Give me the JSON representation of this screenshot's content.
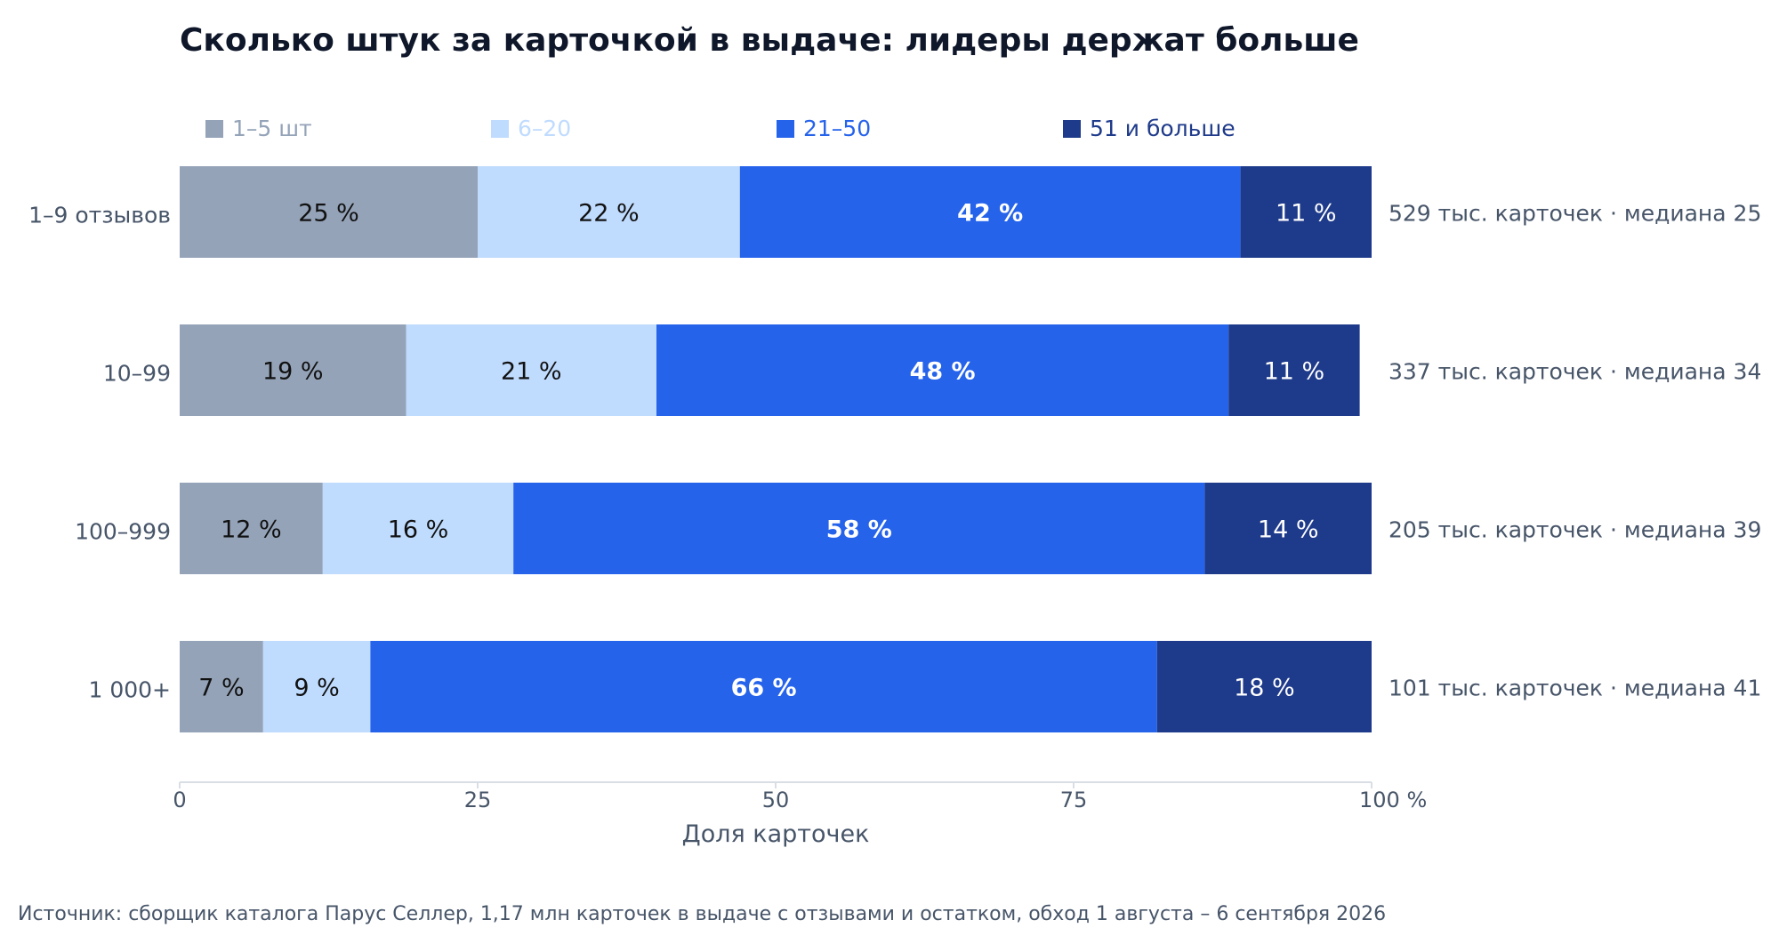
{
  "chart_data": {
    "type": "bar",
    "orientation": "horizontal",
    "stacked": true,
    "title": "Сколько штук за карточкой в выдаче: лидеры держат больше",
    "xlabel": "Доля карточек",
    "ylabel": "",
    "xlim": [
      0,
      100
    ],
    "x_ticks": [
      {
        "value": 0,
        "label": "0"
      },
      {
        "value": 25,
        "label": "25"
      },
      {
        "value": 50,
        "label": "50"
      },
      {
        "value": 75,
        "label": "75"
      },
      {
        "value": 100,
        "label": "100 %"
      }
    ],
    "grid": false,
    "legend_position": "top",
    "categories": [
      "1–9 отзывов",
      "10–99",
      "100–999",
      "1 000+"
    ],
    "series": [
      {
        "name": "1–5 шт",
        "color": "#94a3b8",
        "label_color": "#111111",
        "bold": false,
        "values": [
          25,
          19,
          12,
          7
        ]
      },
      {
        "name": "6–20",
        "color": "#bfdbfe",
        "label_color": "#111111",
        "bold": false,
        "values": [
          22,
          21,
          16,
          9
        ]
      },
      {
        "name": "21–50",
        "color": "#2563eb",
        "label_color": "#ffffff",
        "bold": true,
        "values": [
          42,
          48,
          58,
          66
        ]
      },
      {
        "name": "51 и больше",
        "color": "#1e3a8a",
        "label_color": "#ffffff",
        "bold": false,
        "values": [
          11,
          11,
          14,
          18
        ]
      }
    ],
    "value_labels": [
      [
        "25 %",
        "22 %",
        "42 %",
        "11 %"
      ],
      [
        "19 %",
        "21 %",
        "48 %",
        "11 %"
      ],
      [
        "12 %",
        "16 %",
        "58 %",
        "14 %"
      ],
      [
        "7 %",
        "9 %",
        "66 %",
        "18 %"
      ]
    ],
    "row_annotations": [
      "529 тыс. карточек · медиана 25",
      "337 тыс. карточек · медиана 34",
      "205 тыс. карточек · медиана 39",
      "101 тыс. карточек · медиана 41"
    ],
    "source": "Источник: сборщик каталога Парус Селлер, 1,17 млн карточек в выдаче с отзывами и остатком, обход 1 августа – 6 сентября 2026"
  },
  "colors": {
    "title": "#0f172a",
    "text": "#475569",
    "axis": "#d9dee5"
  }
}
